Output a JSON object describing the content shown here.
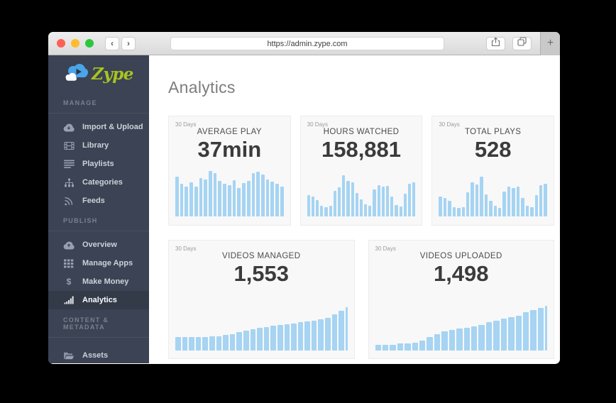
{
  "browser": {
    "url": "https://admin.zype.com",
    "back": "‹",
    "forward": "›",
    "new_tab": "+"
  },
  "theme": {
    "sidebar_bg": "#3b4354",
    "active_item_bg": "#333b49",
    "accent_green": "#a9c41e",
    "bar_color": "#a6d4f2",
    "traffic_red": "#ff5f57",
    "traffic_yellow": "#febc2e",
    "traffic_green": "#2ac840"
  },
  "sidebar": {
    "logo_text": "Zype",
    "active_item": "Analytics",
    "sections": [
      {
        "title": "MANAGE",
        "items": [
          {
            "label": "Import & Upload",
            "icon": "cloud-download-icon"
          },
          {
            "label": "Library",
            "icon": "film-icon"
          },
          {
            "label": "Playlists",
            "icon": "list-icon"
          },
          {
            "label": "Categories",
            "icon": "sitemap-icon"
          },
          {
            "label": "Feeds",
            "icon": "rss-icon"
          }
        ]
      },
      {
        "title": "PUBLISH",
        "items": [
          {
            "label": "Overview",
            "icon": "cloud-upload-icon"
          },
          {
            "label": "Manage Apps",
            "icon": "grid-icon"
          },
          {
            "label": "Make Money",
            "icon": "dollar-icon"
          },
          {
            "label": "Analytics",
            "icon": "bar-chart-icon",
            "active": true
          }
        ]
      },
      {
        "title": "CONTENT & METADATA",
        "items": [
          {
            "label": "Assets",
            "icon": "folder-icon"
          }
        ]
      }
    ]
  },
  "main": {
    "title": "Analytics",
    "cards": [
      {
        "period": "30 Days",
        "label": "AVERAGE PLAY",
        "value": "37min",
        "bars": [
          85,
          70,
          64,
          73,
          63,
          82,
          79,
          97,
          93,
          76,
          70,
          67,
          78,
          60,
          71,
          76,
          92,
          95,
          89,
          79,
          75,
          69,
          64
        ]
      },
      {
        "period": "30 Days",
        "label": "HOURS WATCHED",
        "value": "158,881",
        "bars": [
          45,
          43,
          35,
          22,
          20,
          22,
          55,
          62,
          88,
          76,
          72,
          50,
          36,
          26,
          22,
          58,
          66,
          63,
          65,
          42,
          25,
          21,
          48,
          70,
          73
        ]
      },
      {
        "period": "30 Days",
        "label": "TOTAL PLAYS",
        "value": "528",
        "bars": [
          42,
          40,
          33,
          20,
          18,
          20,
          52,
          73,
          68,
          85,
          47,
          34,
          22,
          18,
          53,
          64,
          61,
          63,
          39,
          23,
          19,
          45,
          67,
          70
        ]
      },
      {
        "period": "30 Days",
        "label": "VIDEOS MANAGED",
        "value": "1,553",
        "bars": [
          30,
          30,
          30,
          30,
          30,
          31,
          32,
          34,
          36,
          40,
          44,
          47,
          50,
          52,
          54,
          56,
          58,
          60,
          62,
          64,
          66,
          68,
          72,
          80,
          88,
          95
        ]
      },
      {
        "period": "30 Days",
        "label": "VIDEOS UPLOADED",
        "value": "1,498",
        "bars": [
          12,
          12,
          12,
          15,
          15,
          17,
          22,
          30,
          36,
          42,
          46,
          48,
          50,
          53,
          57,
          62,
          66,
          70,
          73,
          76,
          84,
          89,
          93,
          98
        ]
      }
    ]
  },
  "chart_data": {
    "type": "bar",
    "note": "five 30-day sparkline bar charts, values are relative heights (% of chart area)",
    "series": [
      {
        "name": "AVERAGE PLAY",
        "values": [
          85,
          70,
          64,
          73,
          63,
          82,
          79,
          97,
          93,
          76,
          70,
          67,
          78,
          60,
          71,
          76,
          92,
          95,
          89,
          79,
          75,
          69,
          64
        ]
      },
      {
        "name": "HOURS WATCHED",
        "values": [
          45,
          43,
          35,
          22,
          20,
          22,
          55,
          62,
          88,
          76,
          72,
          50,
          36,
          26,
          22,
          58,
          66,
          63,
          65,
          42,
          25,
          21,
          48,
          70,
          73
        ]
      },
      {
        "name": "TOTAL PLAYS",
        "values": [
          42,
          40,
          33,
          20,
          18,
          20,
          52,
          73,
          68,
          85,
          47,
          34,
          22,
          18,
          53,
          64,
          61,
          63,
          39,
          23,
          19,
          45,
          67,
          70
        ]
      },
      {
        "name": "VIDEOS MANAGED",
        "values": [
          30,
          30,
          30,
          30,
          30,
          31,
          32,
          34,
          36,
          40,
          44,
          47,
          50,
          52,
          54,
          56,
          58,
          60,
          62,
          64,
          66,
          68,
          72,
          80,
          88,
          95
        ]
      },
      {
        "name": "VIDEOS UPLOADED",
        "values": [
          12,
          12,
          12,
          15,
          15,
          17,
          22,
          30,
          36,
          42,
          46,
          48,
          50,
          53,
          57,
          62,
          66,
          70,
          73,
          76,
          84,
          89,
          93,
          98
        ]
      }
    ]
  }
}
